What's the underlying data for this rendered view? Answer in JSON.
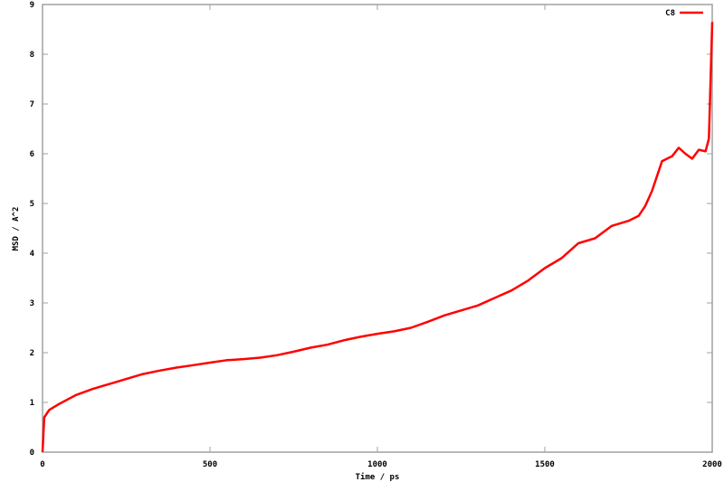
{
  "chart_data": {
    "type": "line",
    "title": "",
    "xlabel": "Time / ps",
    "ylabel": "MSD / A^2",
    "xlim": [
      0,
      2000
    ],
    "ylim": [
      0,
      9
    ],
    "xticks": [
      0,
      500,
      1000,
      1500,
      2000
    ],
    "yticks": [
      0,
      1,
      2,
      3,
      4,
      5,
      6,
      7,
      8,
      9
    ],
    "grid": false,
    "legend_position": "top-right",
    "series": [
      {
        "name": "C8",
        "color": "#ff0000",
        "x": [
          0,
          5,
          20,
          50,
          100,
          150,
          200,
          250,
          300,
          350,
          400,
          450,
          500,
          550,
          600,
          650,
          700,
          750,
          800,
          850,
          900,
          950,
          1000,
          1050,
          1100,
          1150,
          1200,
          1250,
          1300,
          1350,
          1400,
          1450,
          1500,
          1550,
          1600,
          1650,
          1700,
          1750,
          1780,
          1800,
          1820,
          1850,
          1880,
          1900,
          1920,
          1940,
          1960,
          1980,
          1990,
          1995,
          2000
        ],
        "y": [
          0,
          0.7,
          0.85,
          0.97,
          1.15,
          1.27,
          1.37,
          1.47,
          1.57,
          1.64,
          1.7,
          1.75,
          1.8,
          1.85,
          1.87,
          1.9,
          1.95,
          2.02,
          2.1,
          2.16,
          2.25,
          2.32,
          2.38,
          2.43,
          2.5,
          2.62,
          2.75,
          2.85,
          2.95,
          3.1,
          3.25,
          3.45,
          3.7,
          3.9,
          4.2,
          4.3,
          4.55,
          4.65,
          4.75,
          4.95,
          5.25,
          5.85,
          5.95,
          6.12,
          6.0,
          5.9,
          6.08,
          6.05,
          6.3,
          7.5,
          8.65
        ]
      }
    ]
  }
}
